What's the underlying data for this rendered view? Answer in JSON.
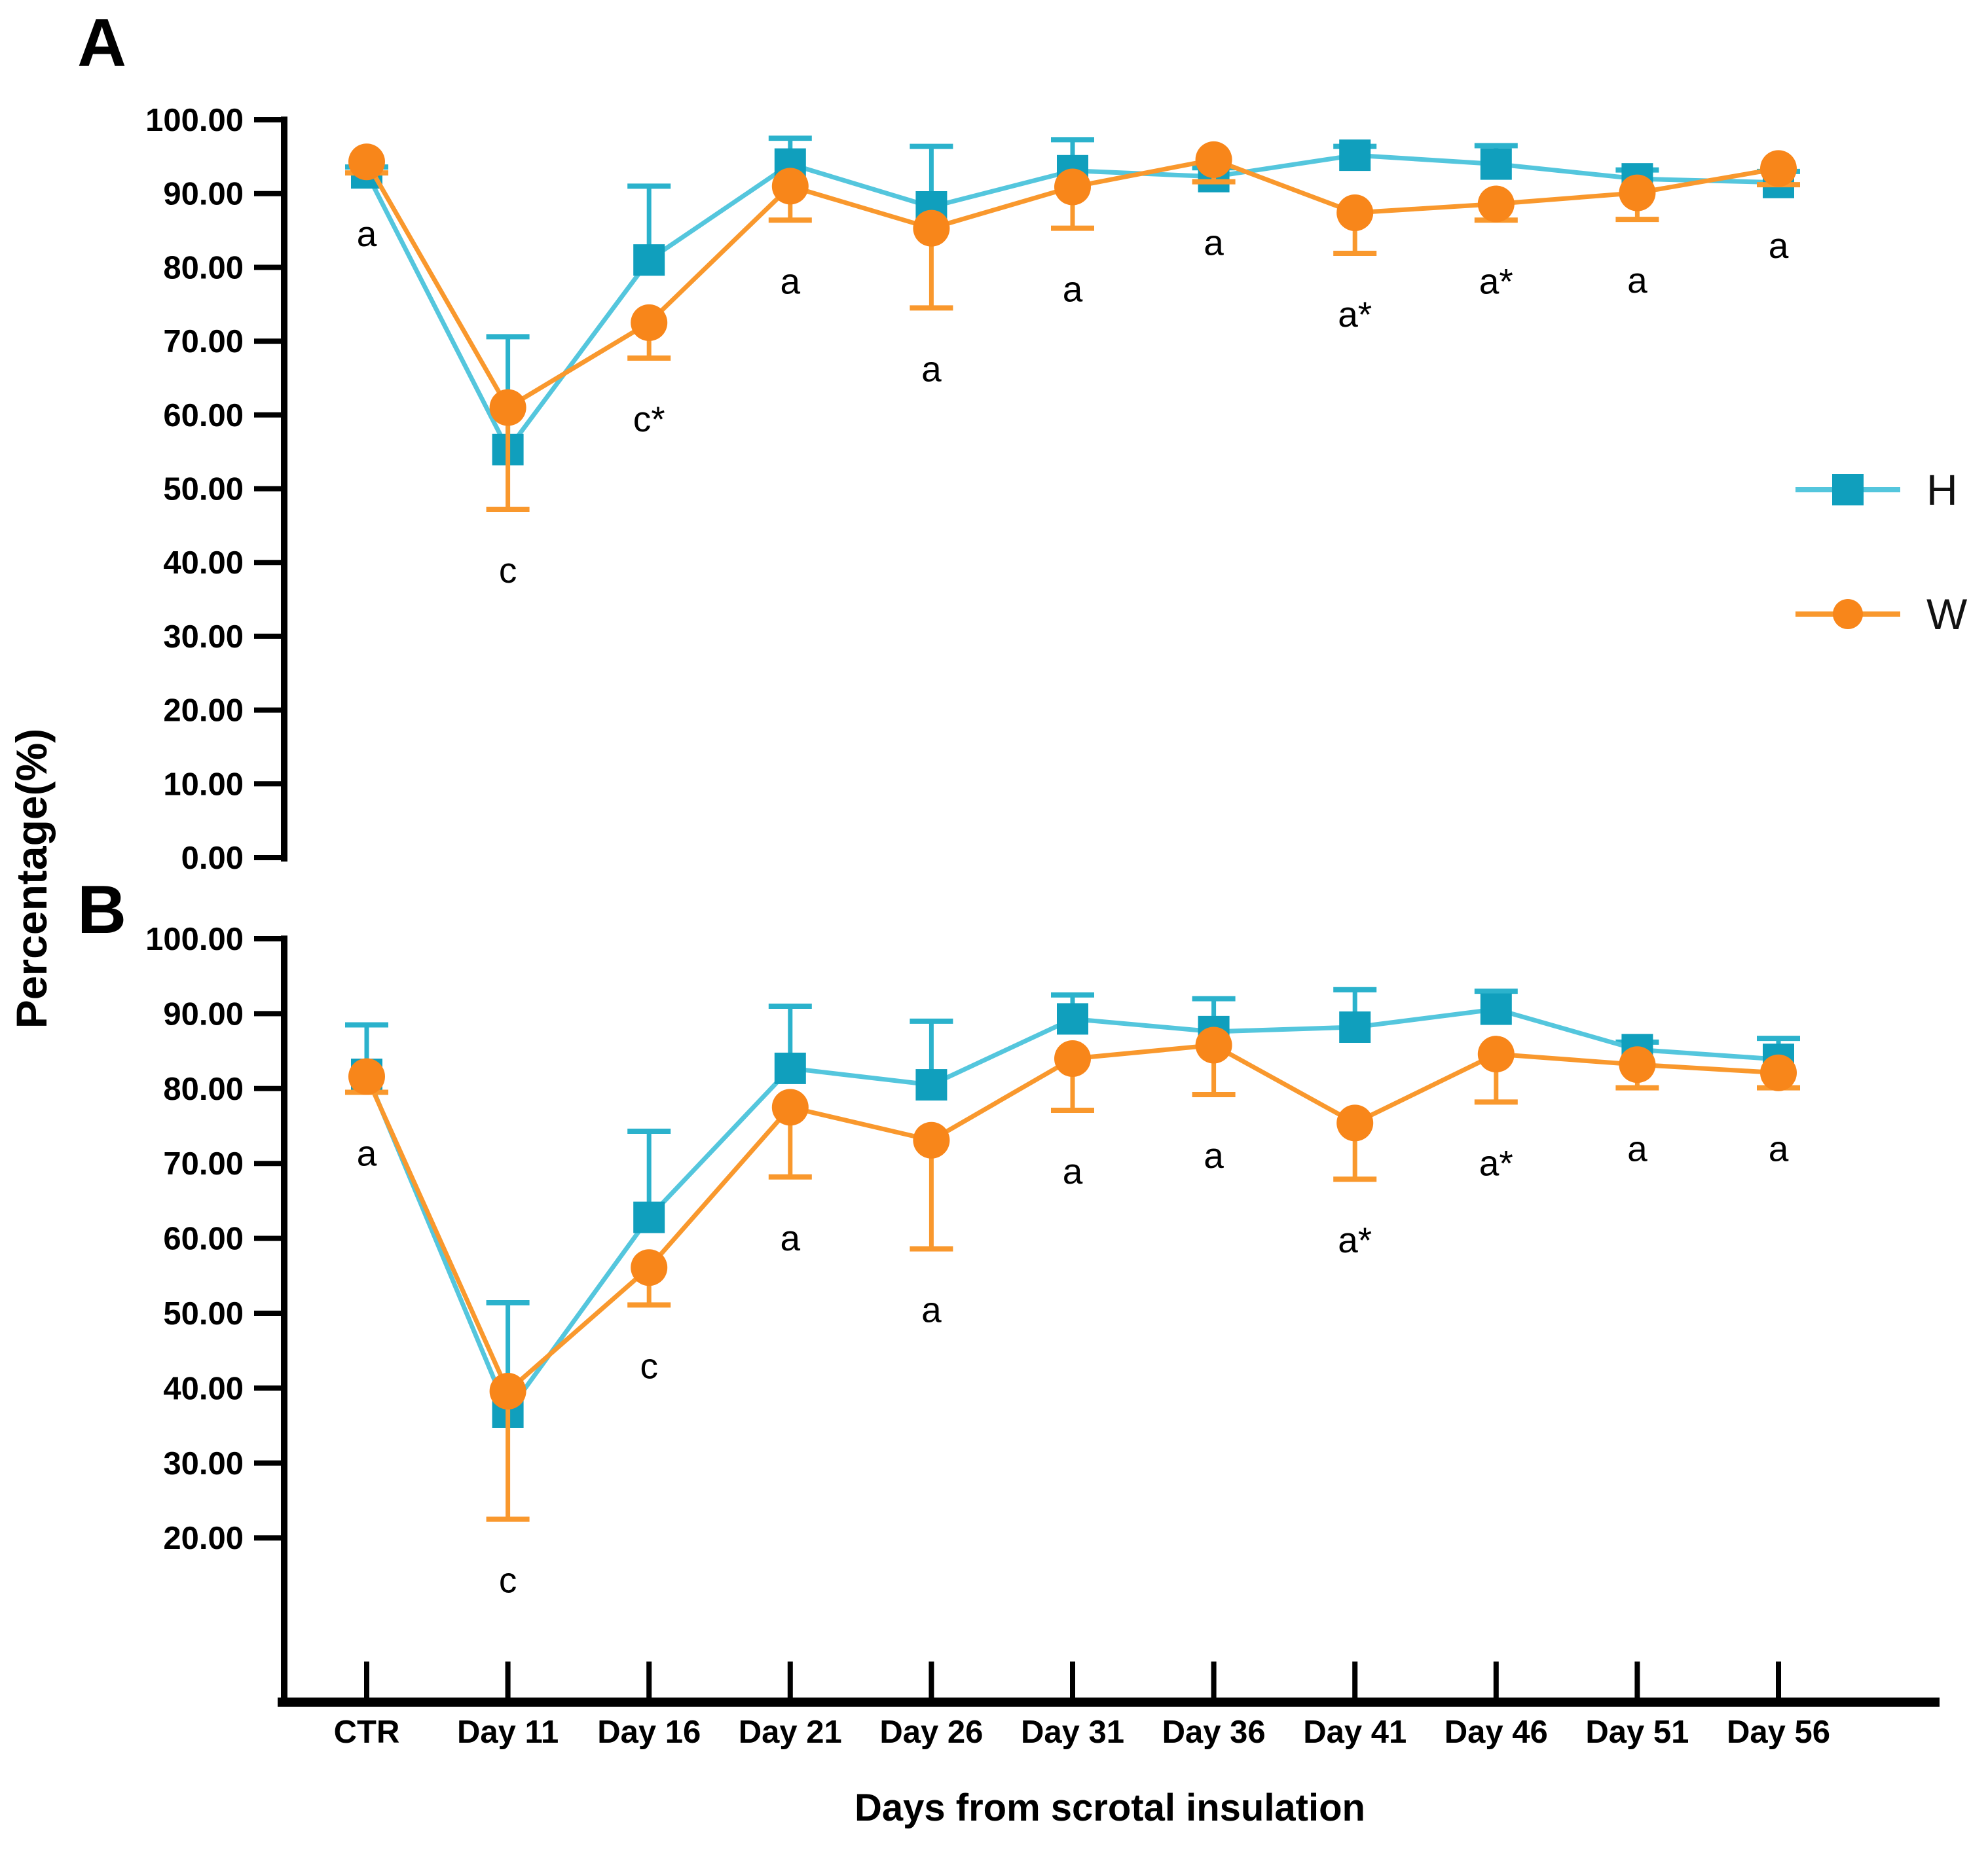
{
  "figure": {
    "panel_a_letter": "A",
    "panel_b_letter": "B",
    "ylabel": "Percentage(%)",
    "xlabel": "Days from scrotal insulation"
  },
  "legend": [
    {
      "label": "H",
      "marker": "square",
      "marker_color": "#109FBD",
      "line_color": "#54C6DD"
    },
    {
      "label": "W",
      "marker": "circle",
      "marker_color": "#F8861A",
      "line_color": "#F9982D"
    }
  ],
  "chart_data": [
    {
      "panel": "A",
      "type": "line",
      "title": "",
      "xlabel": "Days from scrotal insulation",
      "ylabel": "Percentage(%)",
      "categories": [
        "CTR",
        "Day 11",
        "Day 16",
        "Day 21",
        "Day 26",
        "Day 31",
        "Day 36",
        "Day 41",
        "Day 46",
        "Day 51",
        "Day 56"
      ],
      "ylim": [
        0,
        100
      ],
      "yticks": [
        100,
        90,
        80,
        70,
        60,
        50,
        40,
        30,
        20,
        10,
        0
      ],
      "grid": false,
      "legend_position": "right",
      "series": [
        {
          "name": "H",
          "marker": "square",
          "marker_color": "#109FBD",
          "line_color": "#54C6DD",
          "error_color": "#2BB2CC",
          "values": [
            92.8,
            55.3,
            81.0,
            94.0,
            88.2,
            93.1,
            92.3,
            95.2,
            94.0,
            92.0,
            91.5
          ],
          "err_up": [
            0.8,
            15.3,
            10.0,
            3.5,
            8.2,
            4.2,
            1.2,
            1.2,
            2.5,
            1.2,
            1.5
          ],
          "err_down": [
            0,
            0,
            0,
            0,
            0,
            0,
            0,
            0,
            0,
            0,
            0
          ]
        },
        {
          "name": "W",
          "marker": "circle",
          "marker_color": "#F8861A",
          "line_color": "#F9982D",
          "error_color": "#F9982D",
          "values": [
            94.3,
            61.0,
            72.5,
            91.0,
            85.3,
            90.9,
            94.6,
            87.4,
            88.6,
            90.1,
            93.4
          ],
          "err_up": [
            0,
            0,
            0,
            0,
            0,
            0,
            0,
            0,
            0,
            0,
            0
          ],
          "err_down": [
            1.5,
            13.8,
            4.8,
            4.6,
            10.8,
            5.6,
            3.0,
            5.5,
            2.2,
            3.6,
            2.2
          ]
        }
      ],
      "annotations": [
        "a",
        "c",
        "c*",
        "a",
        "a",
        "a",
        "a",
        "a*",
        "a*",
        "a",
        "a"
      ]
    },
    {
      "panel": "B",
      "type": "line",
      "title": "",
      "xlabel": "Days from scrotal insulation",
      "ylabel": "Percentage(%)",
      "categories": [
        "CTR",
        "Day 11",
        "Day 16",
        "Day 21",
        "Day 26",
        "Day 31",
        "Day 36",
        "Day 41",
        "Day 46",
        "Day 51",
        "Day 56"
      ],
      "ylim": [
        0,
        100
      ],
      "yticks": [
        100,
        90,
        80,
        70,
        60,
        50,
        40,
        30,
        20
      ],
      "grid": false,
      "legend_position": "right",
      "series": [
        {
          "name": "H",
          "marker": "square",
          "marker_color": "#109FBD",
          "line_color": "#54C6DD",
          "error_color": "#2BB2CC",
          "values": [
            81.9,
            36.8,
            62.8,
            82.7,
            80.5,
            89.3,
            87.6,
            88.2,
            90.6,
            85.2,
            83.9
          ],
          "err_up": [
            6.6,
            14.6,
            11.5,
            8.3,
            8.5,
            3.2,
            4.4,
            5.0,
            2.4,
            1.0,
            2.8
          ],
          "err_down": [
            0,
            0,
            0,
            0,
            0,
            0,
            0,
            0,
            0,
            0,
            0
          ]
        },
        {
          "name": "W",
          "marker": "circle",
          "marker_color": "#F8861A",
          "line_color": "#F9982D",
          "error_color": "#F9982D",
          "values": [
            81.6,
            39.6,
            56.1,
            77.5,
            73.1,
            84.0,
            85.8,
            75.4,
            84.6,
            83.2,
            82.1
          ],
          "err_up": [
            0,
            0,
            0,
            0,
            0,
            0,
            0,
            0,
            0,
            0,
            0
          ],
          "err_down": [
            2.1,
            17.1,
            5.0,
            9.3,
            14.5,
            6.9,
            6.6,
            7.5,
            6.4,
            3.1,
            2.0
          ]
        }
      ],
      "annotations": [
        "a",
        "c",
        "c",
        "a",
        "a",
        "a",
        "a",
        "a*",
        "a*",
        "a",
        "a"
      ]
    }
  ]
}
